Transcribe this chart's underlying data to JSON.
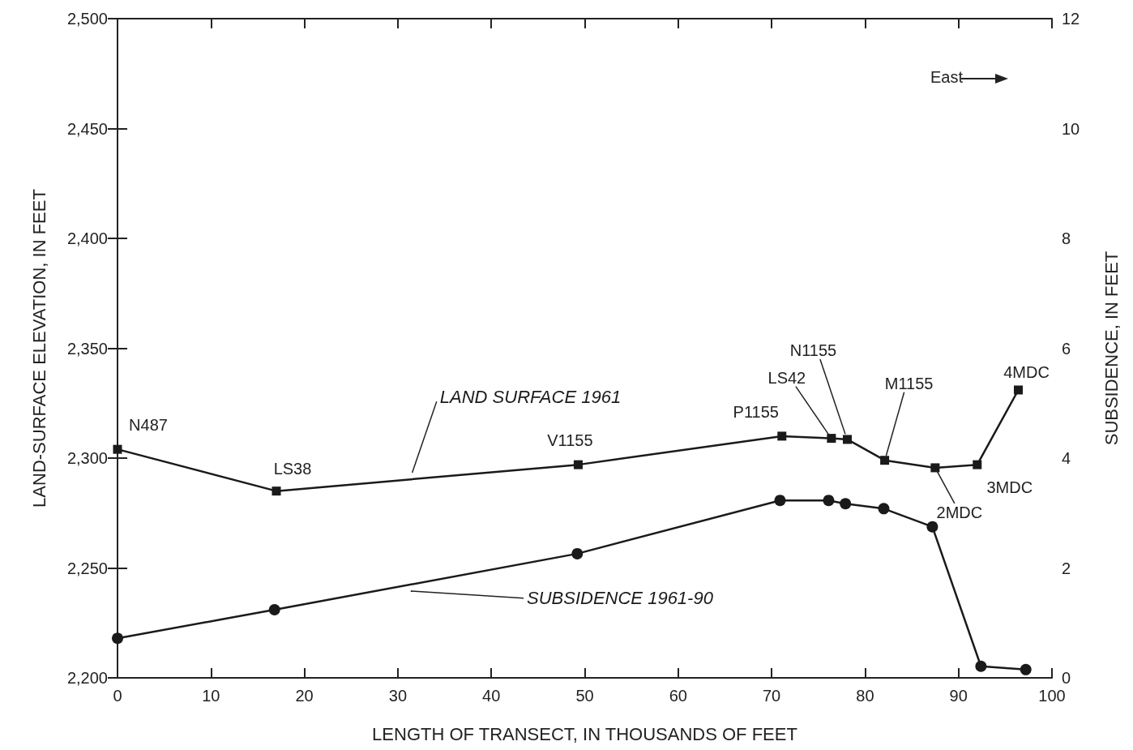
{
  "chart_data": {
    "type": "line",
    "xlabel": "LENGTH OF TRANSECT, IN THOUSANDS OF FEET",
    "ylabel": "LAND-SURFACE ELEVATION, IN FEET",
    "y2label": "SUBSIDENCE, IN FEET",
    "series": [
      {
        "name": "LAND SURFACE 1961",
        "color": "#1a1a1a",
        "marker": "square",
        "x": [
          0,
          17,
          49.3,
          71.1,
          76.4,
          78.1,
          82.1,
          87.5,
          92,
          96.4
        ],
        "values": [
          2304,
          2285,
          2297,
          2310,
          2309,
          2308.5,
          2299,
          2295.6,
          2297,
          2331
        ]
      },
      {
        "name": "SUBSIDENCE 1961-90",
        "color": "#1a1a1a",
        "marker": "circle",
        "axis": "y2",
        "x": [
          0,
          16.8,
          49.2,
          70.9,
          76.1,
          77.9,
          82,
          87.2,
          92.4,
          97.2
        ],
        "values": [
          0.72,
          1.24,
          2.26,
          3.23,
          3.23,
          3.17,
          3.08,
          2.75,
          0.21,
          0.15
        ]
      }
    ],
    "xlim": [
      0,
      100
    ],
    "xticks": [
      0,
      10,
      20,
      30,
      40,
      50,
      60,
      70,
      80,
      90,
      100
    ],
    "ylim": [
      2200,
      2500
    ],
    "yticks": [
      {
        "value": 2200,
        "label": "2,200"
      },
      {
        "value": 2250,
        "label": "2,250"
      },
      {
        "value": 2300,
        "label": "2,300"
      },
      {
        "value": 2350,
        "label": "2,350"
      },
      {
        "value": 2400,
        "label": "2,400"
      },
      {
        "value": 2450,
        "label": "2,450"
      },
      {
        "value": 2500,
        "label": "2,500"
      }
    ],
    "y2lim": [
      0,
      12
    ],
    "y2ticks": [
      0,
      2,
      4,
      6,
      8,
      10,
      12
    ],
    "grid": false,
    "legend": false,
    "line_style": "solid",
    "annotations": [
      {
        "text": "N487",
        "x": 0,
        "y": 2304
      },
      {
        "text": "LS38",
        "x": 17,
        "y": 2285
      },
      {
        "text": "V1155",
        "x": 49.3,
        "y": 2297
      },
      {
        "text": "P1155",
        "x": 71.1,
        "y": 2310
      },
      {
        "text": "LS42",
        "x": 76.4,
        "y": 2309
      },
      {
        "text": "N1155",
        "x": 78.1,
        "y": 2308.5
      },
      {
        "text": "M1155",
        "x": 82.1,
        "y": 2299
      },
      {
        "text": "2MDC",
        "x": 87.5,
        "y": 2295.6
      },
      {
        "text": "3MDC",
        "x": 92,
        "y": 2297
      },
      {
        "text": "4MDC",
        "x": 96.4,
        "y": 2331
      },
      "East"
    ]
  }
}
